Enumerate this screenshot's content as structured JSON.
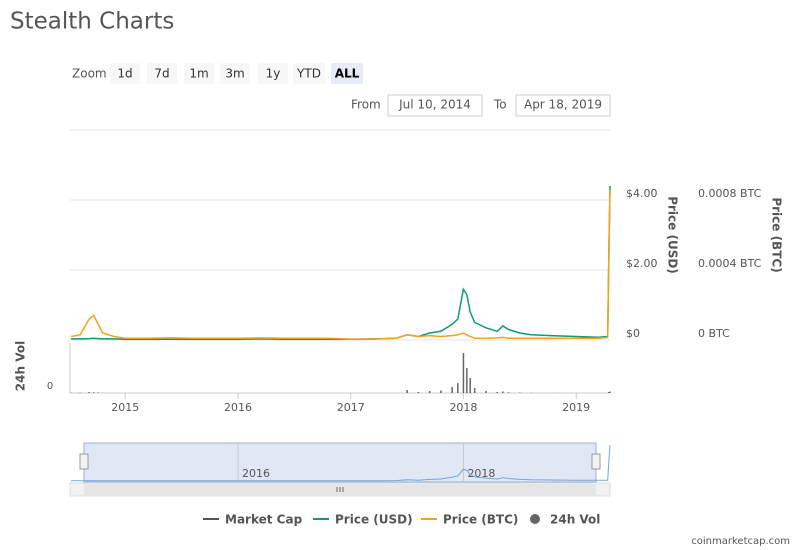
{
  "chart_data": {
    "type": "line",
    "title": "Stealth Charts",
    "x": [
      2014.52,
      2014.6,
      2014.68,
      2014.72,
      2014.76,
      2014.8,
      2014.9,
      2015.0,
      2015.2,
      2015.4,
      2015.6,
      2015.8,
      2016.0,
      2016.2,
      2016.4,
      2016.6,
      2016.8,
      2017.0,
      2017.2,
      2017.4,
      2017.5,
      2017.6,
      2017.7,
      2017.8,
      2017.9,
      2017.95,
      2018.0,
      2018.03,
      2018.06,
      2018.1,
      2018.2,
      2018.3,
      2018.35,
      2018.4,
      2018.5,
      2018.6,
      2018.8,
      2019.0,
      2019.2,
      2019.28,
      2019.29,
      2019.3
    ],
    "xlim": [
      2014.51,
      2019.3
    ],
    "xticks": [
      2015,
      2016,
      2017,
      2018,
      2019
    ],
    "ylim": [
      0,
      6
    ],
    "yticks": [
      {
        "value": 0,
        "label": "$0"
      },
      {
        "value": 2,
        "label": "$2.00"
      },
      {
        "value": 4,
        "label": "$4.00"
      }
    ],
    "ylabel": "Price (USD)",
    "y2lim": [
      0,
      0.0012
    ],
    "y2ticks": [
      {
        "value": 0,
        "label": "0 BTC"
      },
      {
        "value": 0.0004,
        "label": "0.0004 BTC"
      },
      {
        "value": 0.0008,
        "label": "0.0008 BTC"
      }
    ],
    "y2label": "Price (BTC)",
    "y3lim": [
      0,
      1000000
    ],
    "y3ticks": [
      0
    ],
    "y3label": "24h Vol",
    "grid": true,
    "series": [
      {
        "name": "Market Cap",
        "color": "#555555",
        "visible": false
      },
      {
        "name": "Price (USD)",
        "color": "#0e9a74",
        "axis": "y",
        "values": [
          0.03,
          0.03,
          0.04,
          0.05,
          0.04,
          0.03,
          0.03,
          0.02,
          0.02,
          0.02,
          0.02,
          0.02,
          0.02,
          0.03,
          0.02,
          0.02,
          0.02,
          0.02,
          0.03,
          0.05,
          0.15,
          0.1,
          0.2,
          0.25,
          0.45,
          0.6,
          1.45,
          1.3,
          0.8,
          0.5,
          0.35,
          0.25,
          0.4,
          0.3,
          0.2,
          0.15,
          0.12,
          0.1,
          0.08,
          0.1,
          2.5,
          4.4
        ]
      },
      {
        "name": "Price (BTC)",
        "color": "#f7a11a",
        "axis": "y2",
        "values": [
          2e-05,
          3e-05,
          0.00012,
          0.00014,
          9e-05,
          4e-05,
          2e-05,
          1e-05,
          1e-05,
          1.2e-05,
          1e-05,
          1e-05,
          1e-05,
          1.2e-05,
          1e-05,
          1e-05,
          1e-05,
          5e-06,
          5e-06,
          1e-05,
          3e-05,
          2e-05,
          2.5e-05,
          2e-05,
          2.5e-05,
          3e-05,
          4e-05,
          3e-05,
          2e-05,
          1e-05,
          1e-05,
          1.2e-05,
          1.5e-05,
          1e-05,
          1e-05,
          1e-05,
          1e-05,
          1e-05,
          1e-05,
          1.5e-05,
          0.0005,
          0.00086
        ]
      },
      {
        "name": "24h Vol",
        "color": "#666666",
        "axis": "y3",
        "type": "bar",
        "values": [
          5000,
          8000,
          20000,
          15000,
          10000,
          3000,
          1000,
          500,
          500,
          500,
          500,
          500,
          500,
          500,
          500,
          500,
          500,
          500,
          1000,
          2000,
          60000,
          20000,
          40000,
          50000,
          120000,
          200000,
          800000,
          500000,
          300000,
          100000,
          40000,
          20000,
          30000,
          15000,
          10000,
          5000,
          3000,
          2000,
          2000,
          3000,
          20000,
          30000
        ]
      }
    ],
    "navigator": {
      "xticks": [
        2016,
        2018
      ],
      "series": 1,
      "color": "#6fa8dc"
    }
  },
  "ui": {
    "zoom_label": "Zoom",
    "zoom_buttons": [
      "1d",
      "7d",
      "1m",
      "3m",
      "1y",
      "YTD",
      "ALL"
    ],
    "selected": 6,
    "from_label": "From",
    "from_date": "Jul 10, 2014",
    "to_label": "To",
    "to_date": "Apr 18, 2019",
    "credit": "coinmarketcap.com"
  }
}
